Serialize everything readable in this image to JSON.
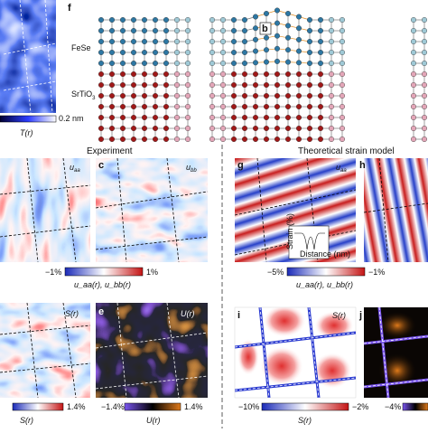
{
  "top": {
    "panel_label": "f",
    "site_label": "b",
    "layer_top": "FeSe",
    "layer_bottom": "SrTiO",
    "layer_bottom_sub": "3",
    "cbar_value": "0.2 nm",
    "cbar_name": "T(r)"
  },
  "headings": {
    "experiment": "Experiment",
    "theory": "Theoretical strain model"
  },
  "panels": [
    {
      "symbol": "u",
      "sub": "aa"
    },
    {
      "letter": "c",
      "symbol": "u",
      "sub": "bb"
    },
    {
      "letter": "g",
      "symbol": "u",
      "sub": "aa"
    },
    {
      "letter": "h"
    },
    {
      "symbol": "S(r)"
    },
    {
      "letter": "e",
      "symbol": "U(r)"
    },
    {
      "letter": "i",
      "symbol": "S(r)"
    },
    {
      "letter": "j"
    }
  ],
  "inset": {
    "x_label": "Distance (nm)",
    "y_label": "Strain (%)"
  },
  "colorbars": [
    {
      "min": "−1%",
      "max": "1%",
      "name": "u_aa(r), u_bb(r)"
    },
    {
      "min": "−5%",
      "max": "−1%",
      "name": "u_aa(r), u_bb(r)"
    },
    {
      "min": "",
      "max": "1.4%",
      "name": "S(r)"
    },
    {
      "min": "−1.4%",
      "max": "1.4%",
      "name": "U(r)"
    },
    {
      "min": "−10%",
      "max": "−2%",
      "name": "S(r)"
    },
    {
      "min": "−4%",
      "max": "",
      "name": ""
    }
  ]
}
